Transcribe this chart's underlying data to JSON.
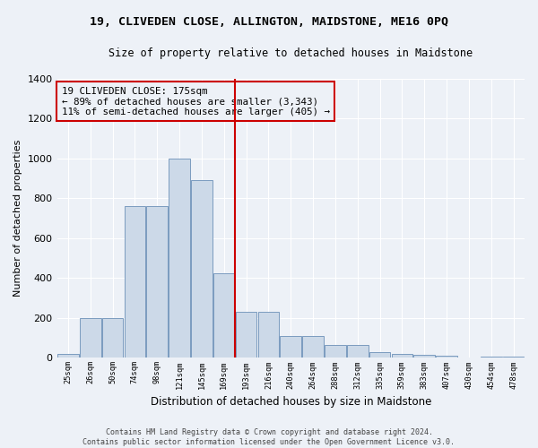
{
  "title": "19, CLIVEDEN CLOSE, ALLINGTON, MAIDSTONE, ME16 0PQ",
  "subtitle": "Size of property relative to detached houses in Maidstone",
  "xlabel": "Distribution of detached houses by size in Maidstone",
  "ylabel": "Number of detached properties",
  "categories": [
    "25sqm",
    "26sqm",
    "50sqm",
    "74sqm",
    "98sqm",
    "121sqm",
    "145sqm",
    "169sqm",
    "193sqm",
    "216sqm",
    "240sqm",
    "264sqm",
    "288sqm",
    "312sqm",
    "335sqm",
    "359sqm",
    "383sqm",
    "407sqm",
    "430sqm",
    "454sqm",
    "478sqm"
  ],
  "bar_heights": [
    20,
    200,
    200,
    760,
    760,
    1000,
    890,
    425,
    230,
    230,
    110,
    110,
    65,
    65,
    30,
    20,
    15,
    10,
    0,
    8,
    5
  ],
  "bar_color": "#ccd9e8",
  "bar_edge_color": "#7a9bbf",
  "vline_index": 7.5,
  "annotation_text": "19 CLIVEDEN CLOSE: 175sqm\n← 89% of detached houses are smaller (3,343)\n11% of semi-detached houses are larger (405) →",
  "annotation_box_edge": "#cc0000",
  "annotation_fontsize": 7.8,
  "footnote": "Contains HM Land Registry data © Crown copyright and database right 2024.\nContains public sector information licensed under the Open Government Licence v3.0.",
  "ylim": [
    0,
    1400
  ],
  "yticks": [
    0,
    200,
    400,
    600,
    800,
    1000,
    1200,
    1400
  ],
  "background_color": "#edf1f7",
  "grid_color": "#ffffff",
  "title_fontsize": 9.5,
  "subtitle_fontsize": 8.5,
  "xlabel_fontsize": 8.5,
  "ylabel_fontsize": 8
}
